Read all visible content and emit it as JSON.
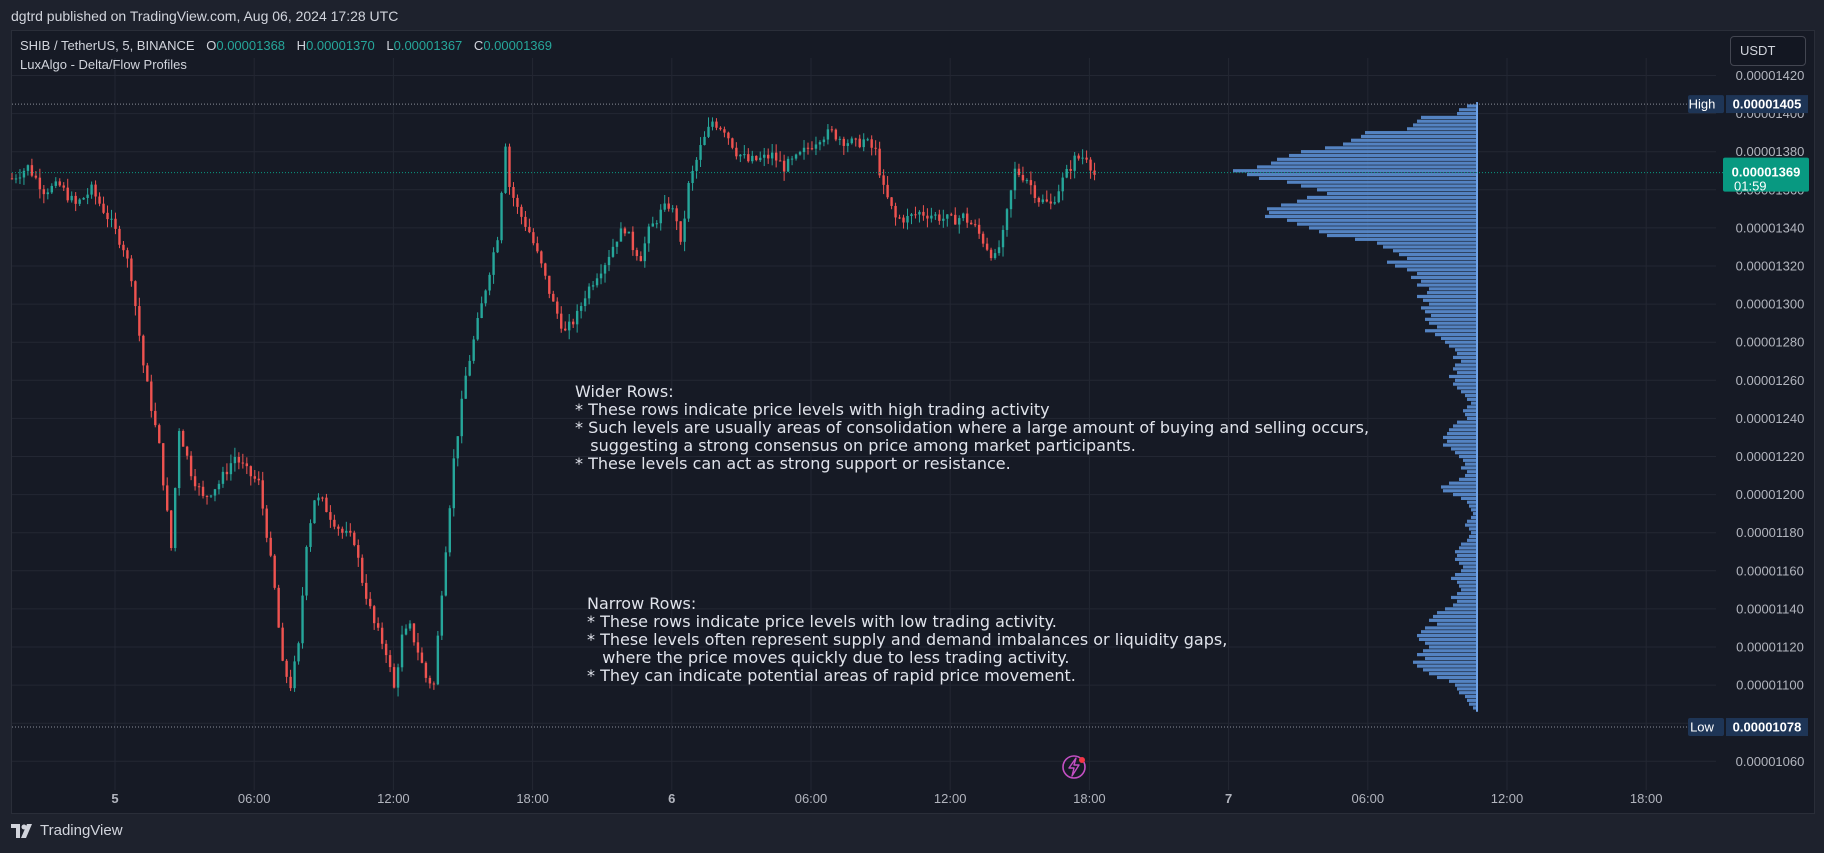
{
  "header": {
    "published": "dgtrd published on TradingView.com, Aug 06, 2024 17:28 UTC"
  },
  "legend": {
    "symbol": "SHIB / TetherUS, 5, BINANCE",
    "open_key": "O",
    "open": "0.00001368",
    "high_key": "H",
    "high": "0.00001370",
    "low_key": "L",
    "low": "0.00001367",
    "close_key": "C",
    "close": "0.00001369",
    "indicator": "LuxAlgo - Delta/Flow Profiles"
  },
  "currency_button": "USDT",
  "footer": {
    "brand": "TradingView"
  },
  "notes": {
    "wider": [
      "Wider Rows:",
      "* These rows indicate price levels with high trading activity",
      "* Such levels are usually areas of consolidation where a large amount of buying and selling occurs,",
      "   suggesting a strong consensus on price among market participants.",
      "* These levels can act as strong support or resistance."
    ],
    "narrow": [
      "Narrow Rows:",
      "* These rows indicate price levels with low trading activity.",
      "* These levels often represent supply and demand imbalances or liquidity gaps,",
      "   where the price moves quickly due to less trading activity.",
      "* They can indicate potential areas of rapid price movement."
    ]
  },
  "colors": {
    "up": "#26a69a",
    "down": "#ef5350",
    "profile": "#5b8fd4",
    "profile_line": "#6fa3e8",
    "badge_dark": "#1e3556",
    "current": "#089981",
    "grid": "#232733",
    "text": "#b2b5be"
  },
  "chart_data": {
    "type": "candlestick",
    "y_axis": {
      "ticks": [
        "0.00001420",
        "0.00001400",
        "0.00001380",
        "0.00001360",
        "0.00001340",
        "0.00001320",
        "0.00001300",
        "0.00001280",
        "0.00001260",
        "0.00001240",
        "0.00001220",
        "0.00001200",
        "0.00001180",
        "0.00001160",
        "0.00001140",
        "0.00001120",
        "0.00001100",
        "0.00001080",
        "0.00001060"
      ],
      "range": [
        1.052e-05,
        1.426e-05
      ]
    },
    "x_axis": {
      "ticks": [
        "5",
        "06:00",
        "12:00",
        "18:00",
        "6",
        "06:00",
        "12:00",
        "18:00",
        "7",
        "06:00",
        "12:00",
        "18:00"
      ],
      "bold": [
        true,
        false,
        false,
        false,
        true,
        false,
        false,
        false,
        true,
        false,
        false,
        false
      ]
    },
    "high": {
      "label": "High",
      "value": "0.00001405"
    },
    "low": {
      "label": "Low",
      "value": "0.00001078"
    },
    "current": {
      "value": "0.00001369",
      "countdown": "01:59"
    },
    "price_path": [
      [
        0,
        1366
      ],
      [
        4,
        1372
      ],
      [
        8,
        1360
      ],
      [
        12,
        1362
      ],
      [
        16,
        1352
      ],
      [
        20,
        1360
      ],
      [
        24,
        1346
      ],
      [
        28,
        1330
      ],
      [
        30,
        1315
      ],
      [
        33,
        1268
      ],
      [
        35,
        1246
      ],
      [
        37,
        1225
      ],
      [
        40,
        1172
      ],
      [
        42,
        1235
      ],
      [
        45,
        1212
      ],
      [
        48,
        1198
      ],
      [
        52,
        1206
      ],
      [
        56,
        1220
      ],
      [
        59,
        1212
      ],
      [
        62,
        1206
      ],
      [
        64,
        1180
      ],
      [
        66,
        1150
      ],
      [
        68,
        1110
      ],
      [
        70,
        1100
      ],
      [
        72,
        1120
      ],
      [
        74,
        1175
      ],
      [
        76,
        1198
      ],
      [
        78,
        1196
      ],
      [
        80,
        1189
      ],
      [
        83,
        1180
      ],
      [
        86,
        1176
      ],
      [
        88,
        1155
      ],
      [
        91,
        1132
      ],
      [
        94,
        1118
      ],
      [
        96,
        1098
      ],
      [
        98,
        1125
      ],
      [
        100,
        1130
      ],
      [
        102,
        1118
      ],
      [
        104,
        1104
      ],
      [
        106,
        1100
      ],
      [
        108,
        1150
      ],
      [
        111,
        1218
      ],
      [
        114,
        1262
      ],
      [
        117,
        1290
      ],
      [
        120,
        1318
      ],
      [
        122,
        1336
      ],
      [
        124,
        1385
      ],
      [
        125,
        1362
      ],
      [
        127,
        1350
      ],
      [
        130,
        1338
      ],
      [
        133,
        1320
      ],
      [
        136,
        1300
      ],
      [
        139,
        1285
      ],
      [
        142,
        1294
      ],
      [
        144,
        1305
      ],
      [
        147,
        1316
      ],
      [
        149,
        1322
      ],
      [
        152,
        1335
      ],
      [
        154,
        1340
      ],
      [
        156,
        1330
      ],
      [
        158,
        1325
      ],
      [
        160,
        1338
      ],
      [
        163,
        1348
      ],
      [
        165,
        1352
      ],
      [
        167,
        1345
      ],
      [
        168,
        1330
      ],
      [
        170,
        1362
      ],
      [
        173,
        1382
      ],
      [
        176,
        1396
      ],
      [
        179,
        1392
      ],
      [
        182,
        1380
      ],
      [
        185,
        1375
      ],
      [
        188,
        1376
      ],
      [
        191,
        1378
      ],
      [
        194,
        1372
      ],
      [
        197,
        1376
      ],
      [
        200,
        1382
      ],
      [
        203,
        1388
      ],
      [
        206,
        1390
      ],
      [
        209,
        1386
      ],
      [
        212,
        1384
      ],
      [
        214,
        1386
      ],
      [
        217,
        1380
      ],
      [
        219,
        1360
      ],
      [
        222,
        1345
      ],
      [
        225,
        1345
      ],
      [
        228,
        1348
      ],
      [
        231,
        1347
      ],
      [
        234,
        1345
      ],
      [
        236,
        1344
      ],
      [
        239,
        1346
      ],
      [
        242,
        1340
      ],
      [
        245,
        1330
      ],
      [
        247,
        1324
      ],
      [
        249,
        1336
      ],
      [
        252,
        1370
      ],
      [
        255,
        1366
      ],
      [
        258,
        1355
      ],
      [
        261,
        1352
      ],
      [
        264,
        1365
      ],
      [
        267,
        1376
      ],
      [
        270,
        1378
      ],
      [
        272,
        1368
      ]
    ],
    "price_scale": 1e-08,
    "x_bars_total": 428,
    "profile": [
      [
        1404,
        10
      ],
      [
        1402,
        18
      ],
      [
        1400,
        20
      ],
      [
        1398,
        56
      ],
      [
        1396,
        60
      ],
      [
        1394,
        64
      ],
      [
        1392,
        70
      ],
      [
        1390,
        112
      ],
      [
        1388,
        116
      ],
      [
        1386,
        126
      ],
      [
        1384,
        134
      ],
      [
        1382,
        152
      ],
      [
        1380,
        176
      ],
      [
        1378,
        188
      ],
      [
        1376,
        200
      ],
      [
        1374,
        206
      ],
      [
        1372,
        220
      ],
      [
        1370,
        244
      ],
      [
        1368,
        230
      ],
      [
        1366,
        218
      ],
      [
        1364,
        190
      ],
      [
        1362,
        176
      ],
      [
        1360,
        160
      ],
      [
        1358,
        150
      ],
      [
        1356,
        170
      ],
      [
        1354,
        180
      ],
      [
        1352,
        196
      ],
      [
        1350,
        210
      ],
      [
        1348,
        208
      ],
      [
        1346,
        212
      ],
      [
        1344,
        190
      ],
      [
        1342,
        180
      ],
      [
        1340,
        168
      ],
      [
        1338,
        158
      ],
      [
        1336,
        150
      ],
      [
        1334,
        122
      ],
      [
        1332,
        100
      ],
      [
        1330,
        94
      ],
      [
        1328,
        84
      ],
      [
        1326,
        78
      ],
      [
        1324,
        70
      ],
      [
        1322,
        90
      ],
      [
        1320,
        82
      ],
      [
        1318,
        70
      ],
      [
        1316,
        60
      ],
      [
        1314,
        66
      ],
      [
        1312,
        56
      ],
      [
        1310,
        60
      ],
      [
        1308,
        48
      ],
      [
        1306,
        50
      ],
      [
        1304,
        60
      ],
      [
        1302,
        54
      ],
      [
        1300,
        48
      ],
      [
        1298,
        56
      ],
      [
        1296,
        52
      ],
      [
        1294,
        46
      ],
      [
        1292,
        52
      ],
      [
        1290,
        48
      ],
      [
        1288,
        40
      ],
      [
        1286,
        52
      ],
      [
        1284,
        42
      ],
      [
        1282,
        36
      ],
      [
        1280,
        32
      ],
      [
        1278,
        28
      ],
      [
        1276,
        22
      ],
      [
        1274,
        20
      ],
      [
        1272,
        24
      ],
      [
        1270,
        16
      ],
      [
        1268,
        22
      ],
      [
        1266,
        24
      ],
      [
        1264,
        20
      ],
      [
        1262,
        28
      ],
      [
        1260,
        22
      ],
      [
        1258,
        24
      ],
      [
        1256,
        20
      ],
      [
        1254,
        16
      ],
      [
        1252,
        12
      ],
      [
        1250,
        10
      ],
      [
        1248,
        6
      ],
      [
        1246,
        10
      ],
      [
        1244,
        14
      ],
      [
        1242,
        12
      ],
      [
        1240,
        10
      ],
      [
        1238,
        20
      ],
      [
        1236,
        24
      ],
      [
        1234,
        28
      ],
      [
        1232,
        30
      ],
      [
        1230,
        34
      ],
      [
        1228,
        30
      ],
      [
        1226,
        34
      ],
      [
        1224,
        26
      ],
      [
        1222,
        22
      ],
      [
        1220,
        18
      ],
      [
        1218,
        14
      ],
      [
        1216,
        12
      ],
      [
        1214,
        16
      ],
      [
        1212,
        10
      ],
      [
        1210,
        12
      ],
      [
        1208,
        18
      ],
      [
        1206,
        28
      ],
      [
        1204,
        36
      ],
      [
        1202,
        34
      ],
      [
        1200,
        24
      ],
      [
        1198,
        16
      ],
      [
        1196,
        10
      ],
      [
        1194,
        8
      ],
      [
        1192,
        6
      ],
      [
        1190,
        4
      ],
      [
        1188,
        6
      ],
      [
        1186,
        10
      ],
      [
        1184,
        12
      ],
      [
        1182,
        8
      ],
      [
        1180,
        6
      ],
      [
        1178,
        8
      ],
      [
        1176,
        10
      ],
      [
        1174,
        16
      ],
      [
        1172,
        18
      ],
      [
        1170,
        22
      ],
      [
        1168,
        20
      ],
      [
        1166,
        22
      ],
      [
        1164,
        18
      ],
      [
        1162,
        14
      ],
      [
        1160,
        16
      ],
      [
        1158,
        22
      ],
      [
        1156,
        26
      ],
      [
        1154,
        20
      ],
      [
        1152,
        18
      ],
      [
        1150,
        16
      ],
      [
        1148,
        20
      ],
      [
        1146,
        26
      ],
      [
        1144,
        20
      ],
      [
        1142,
        24
      ],
      [
        1140,
        32
      ],
      [
        1138,
        40
      ],
      [
        1136,
        44
      ],
      [
        1134,
        48
      ],
      [
        1132,
        40
      ],
      [
        1130,
        52
      ],
      [
        1128,
        56
      ],
      [
        1126,
        60
      ],
      [
        1124,
        58
      ],
      [
        1122,
        52
      ],
      [
        1120,
        48
      ],
      [
        1118,
        54
      ],
      [
        1116,
        60
      ],
      [
        1114,
        52
      ],
      [
        1112,
        64
      ],
      [
        1110,
        60
      ],
      [
        1108,
        54
      ],
      [
        1106,
        48
      ],
      [
        1104,
        40
      ],
      [
        1102,
        28
      ],
      [
        1100,
        22
      ],
      [
        1098,
        20
      ],
      [
        1096,
        18
      ],
      [
        1094,
        12
      ],
      [
        1092,
        10
      ],
      [
        1090,
        8
      ],
      [
        1088,
        4
      ]
    ]
  }
}
